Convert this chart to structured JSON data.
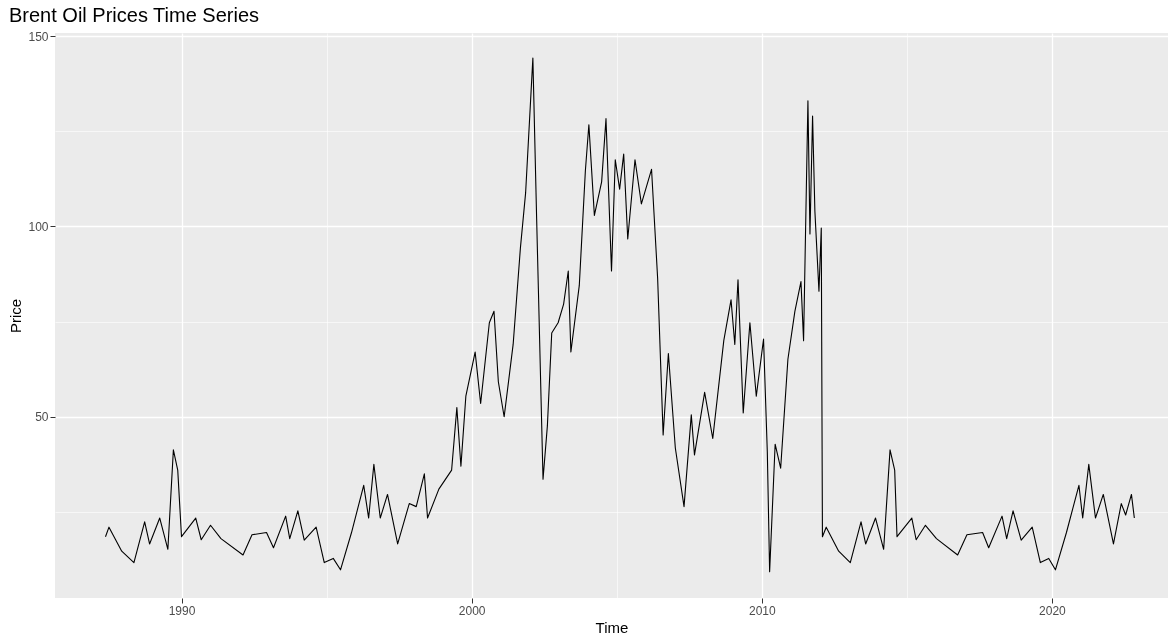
{
  "chart_data": {
    "type": "line",
    "title": "Brent Oil Prices Time Series",
    "xlabel": "Time",
    "ylabel": "Price",
    "xlim": [
      1985.64,
      2024.0
    ],
    "ylim": [
      2.4,
      150.8
    ],
    "xticks": [
      {
        "value": 1990,
        "label": "1990"
      },
      {
        "value": 1995,
        "label": null
      },
      {
        "value": 2000,
        "label": "2000"
      },
      {
        "value": 2005,
        "label": null
      },
      {
        "value": 2010,
        "label": "2010"
      },
      {
        "value": 2015,
        "label": null
      },
      {
        "value": 2020,
        "label": "2020"
      }
    ],
    "yticks": [
      {
        "value": 25,
        "label": null
      },
      50,
      {
        "value": 75,
        "label": null
      },
      100,
      {
        "value": 125,
        "label": null
      },
      150
    ],
    "grid": true,
    "legend": false,
    "series": [
      {
        "color": "#000000",
        "x": [
          1987.38,
          1987.5,
          1987.94,
          1988.36,
          1988.73,
          1988.9,
          1989.25,
          1989.53,
          1989.72,
          1989.87,
          1990.0,
          1990.49,
          1990.68,
          1991.0,
          1991.36,
          1992.12,
          1992.43,
          1992.93,
          1993.17,
          1993.59,
          1993.73,
          1994.01,
          1994.23,
          1994.64,
          1994.92,
          1995.23,
          1995.48,
          1995.86,
          1996.28,
          1996.45,
          1996.63,
          1996.85,
          1997.1,
          1997.45,
          1997.85,
          1998.09,
          1998.37,
          1998.48,
          1998.87,
          1999.31,
          1999.49,
          1999.63,
          1999.8,
          2000.12,
          2000.31,
          2000.61,
          2000.77,
          2000.92,
          2001.12,
          2001.43,
          2001.68,
          2001.86,
          2002.11,
          2002.24,
          2002.3,
          2002.46,
          2002.61,
          2002.76,
          2002.98,
          2003.17,
          2003.33,
          2003.42,
          2003.71,
          2003.92,
          2004.04,
          2004.23,
          2004.48,
          2004.63,
          2004.82,
          2004.95,
          2005.1,
          2005.24,
          2005.38,
          2005.63,
          2005.85,
          2006.2,
          2006.41,
          2006.6,
          2006.78,
          2007.02,
          2007.32,
          2007.57,
          2007.68,
          2008.03,
          2008.31,
          2008.69,
          2008.94,
          2009.07,
          2009.18,
          2009.36,
          2009.59,
          2009.81,
          2010.06,
          2010.19,
          2010.27,
          2010.46,
          2010.65,
          2010.9,
          2011.14,
          2011.35,
          2011.44,
          2011.59,
          2011.66,
          2011.75,
          2011.83,
          2011.97,
          2012.05,
          2012.09,
          2012.22,
          2012.65,
          2013.05,
          2013.42,
          2013.58,
          2013.92,
          2014.2,
          2014.42,
          2014.58,
          2014.66,
          2015.17,
          2015.32,
          2015.64,
          2016.02,
          2016.75,
          2017.07,
          2017.61,
          2017.82,
          2018.28,
          2018.44,
          2018.66,
          2018.94,
          2019.32,
          2019.6,
          2019.89,
          2020.12,
          2020.5,
          2020.93,
          2021.06,
          2021.27,
          2021.5,
          2021.77,
          2022.12,
          2022.39,
          2022.54,
          2022.74,
          2022.84
        ],
        "values": [
          18.5,
          21,
          14.7,
          11.7,
          22.4,
          16.6,
          23.4,
          15.2,
          41.3,
          36,
          18.5,
          23.4,
          17.7,
          21.5,
          18,
          13.7,
          19,
          19.6,
          15.6,
          23.9,
          18,
          25.3,
          17.6,
          21,
          11.7,
          12.8,
          9.8,
          19.6,
          32,
          23.4,
          37.5,
          23.4,
          29.6,
          16.6,
          27.2,
          26.4,
          35,
          23.4,
          31,
          36,
          52.4,
          37,
          55.4,
          67,
          53.5,
          74.7,
          77.7,
          59.2,
          50,
          69,
          94.3,
          108.8,
          144.2,
          102,
          83.5,
          33.6,
          47.6,
          72,
          74.7,
          79.6,
          88.3,
          67,
          84.5,
          114.7,
          126.7,
          102.9,
          111.7,
          128.3,
          88.3,
          117.5,
          109.8,
          119,
          96.7,
          117.5,
          105.9,
          115,
          86.4,
          45.2,
          66.6,
          41.8,
          26.4,
          50.5,
          40,
          56.4,
          44.3,
          70,
          80.7,
          69,
          86,
          51,
          74.7,
          55.4,
          70.4,
          40.8,
          9.3,
          42.8,
          36.5,
          65.1,
          77.7,
          85.5,
          70,
          133,
          98,
          129,
          104,
          83,
          99.6,
          18.5,
          21,
          14.7,
          11.7,
          22.4,
          16.6,
          23.4,
          15.2,
          41.3,
          36,
          18.5,
          23.4,
          17.7,
          21.5,
          18,
          13.7,
          19,
          19.6,
          15.6,
          23.9,
          18,
          25.3,
          17.6,
          21,
          11.7,
          12.8,
          9.8,
          19.6,
          32,
          23.4,
          37.5,
          23.4,
          29.6,
          16.6,
          27.2,
          24.2,
          29.6,
          23.4
        ]
      }
    ]
  }
}
